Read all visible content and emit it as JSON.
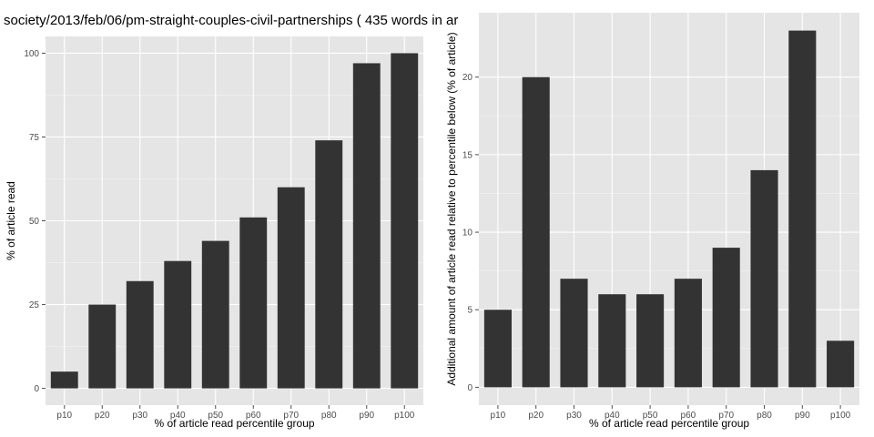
{
  "title": "society/2013/feb/06/pm-straight-couples-civil-partnerships ( 435 words in ar",
  "colors": {
    "panel_bg": "#e5e5e5",
    "grid_major": "#ffffff",
    "grid_minor": "#f2f2f2",
    "bar": "#333333"
  },
  "chart_data": [
    {
      "type": "bar",
      "categories": [
        "p10",
        "p20",
        "p30",
        "p40",
        "p50",
        "p60",
        "p70",
        "p80",
        "p90",
        "p100"
      ],
      "values": [
        5,
        25,
        32,
        38,
        44,
        51,
        60,
        74,
        97,
        100
      ],
      "xlabel": "% of article read percentile group",
      "ylabel": "% of article read",
      "ylim": [
        -5,
        105
      ],
      "yticks": [
        0,
        25,
        50,
        75,
        100
      ],
      "ytick_labels": [
        "0",
        "25",
        "50",
        "75",
        "100"
      ],
      "grid": true
    },
    {
      "type": "bar",
      "categories": [
        "p10",
        "p20",
        "p30",
        "p40",
        "p50",
        "p60",
        "p70",
        "p80",
        "p90",
        "p100"
      ],
      "values": [
        5,
        20,
        7,
        6,
        6,
        7,
        9,
        14,
        23,
        3
      ],
      "xlabel": "% of article read percentile group",
      "ylabel": "Additional amount of article read relative to percentile below (% of article)",
      "ylim": [
        -1.15,
        24.15
      ],
      "yticks": [
        0,
        5,
        10,
        15,
        20
      ],
      "ytick_labels": [
        "0",
        "5",
        "10",
        "15",
        "20"
      ],
      "grid": true
    }
  ]
}
